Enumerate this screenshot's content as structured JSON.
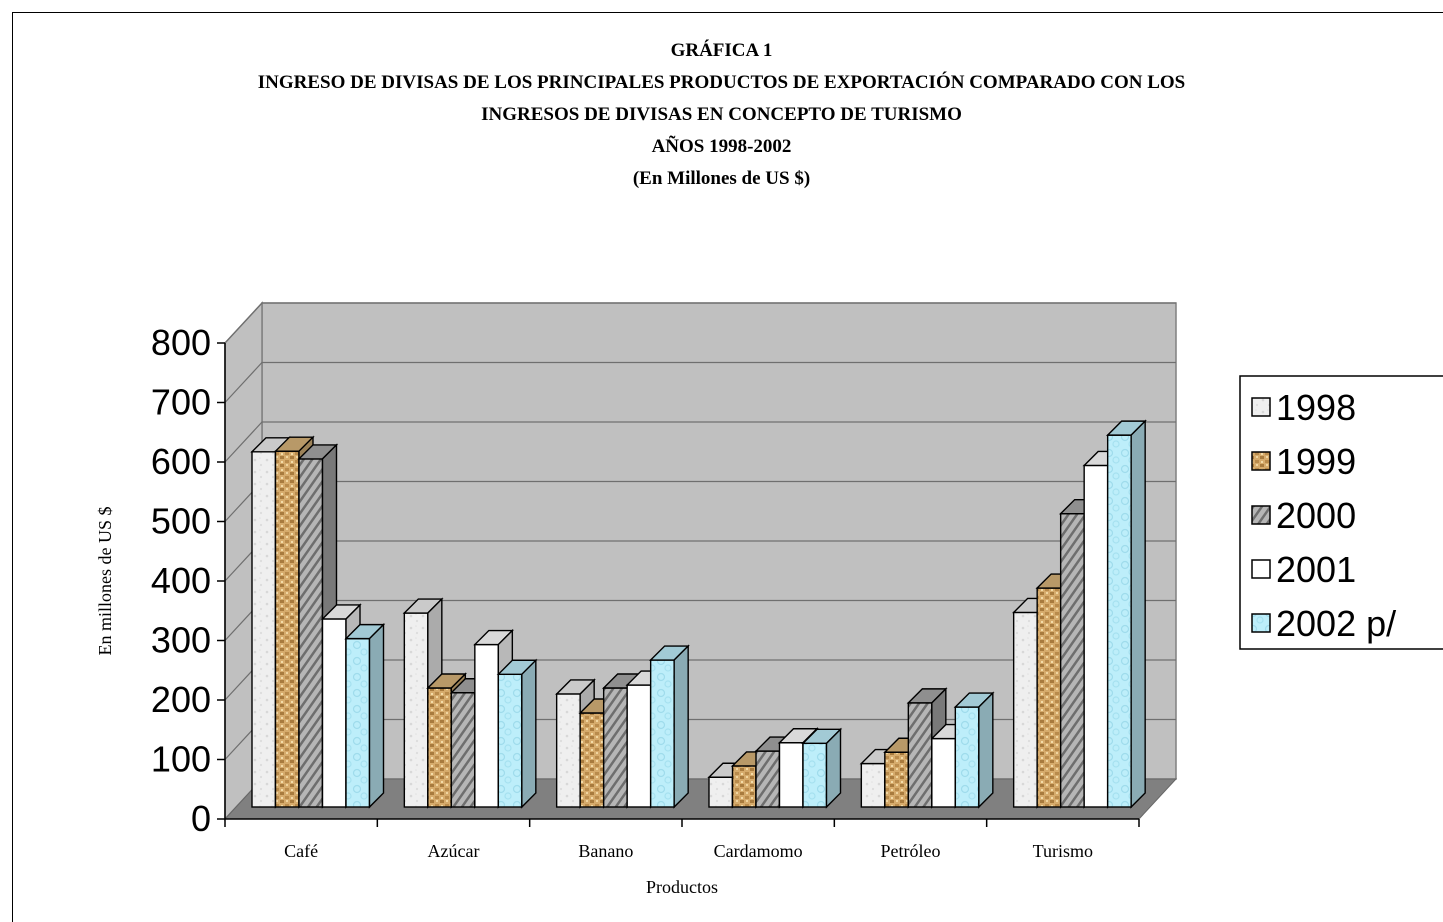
{
  "chart_data": {
    "type": "bar",
    "title_lines": [
      "GRÁFICA 1",
      "INGRESO DE DIVISAS DE LOS PRINCIPALES PRODUCTOS DE EXPORTACIÓN COMPARADO CON LOS",
      "INGRESOS DE DIVISAS EN CONCEPTO DE TURISMO",
      "AÑOS 1998-2002",
      "(En Millones de US $)"
    ],
    "xlabel": "Productos",
    "ylabel": "En millones de US $",
    "ylim": [
      0,
      800
    ],
    "yticks": [
      0,
      100,
      200,
      300,
      400,
      500,
      600,
      700,
      800
    ],
    "categories": [
      "Café",
      "Azúcar",
      "Banano",
      "Cardamomo",
      "Petróleo",
      "Turismo"
    ],
    "series": [
      {
        "name": "1998",
        "values": [
          597,
          326,
          190,
          50,
          73,
          327
        ],
        "color": "#eeeeee",
        "pattern": "marble"
      },
      {
        "name": "1999",
        "values": [
          598,
          200,
          158,
          69,
          92,
          368
        ],
        "color": "#d9b47a",
        "pattern": "brick"
      },
      {
        "name": "2000",
        "values": [
          585,
          192,
          200,
          94,
          175,
          493
        ],
        "color": "#a8a8a8",
        "pattern": "diagonal"
      },
      {
        "name": "2001",
        "values": [
          316,
          273,
          205,
          108,
          115,
          574
        ],
        "color": "#ffffff",
        "pattern": "none"
      },
      {
        "name": "2002 p/",
        "values": [
          283,
          223,
          247,
          107,
          168,
          625
        ],
        "color": "#bfeefa",
        "pattern": "water"
      }
    ],
    "grid": true,
    "legend": "right",
    "wall_color": "#c0c0c0",
    "floor_color": "#808080"
  }
}
